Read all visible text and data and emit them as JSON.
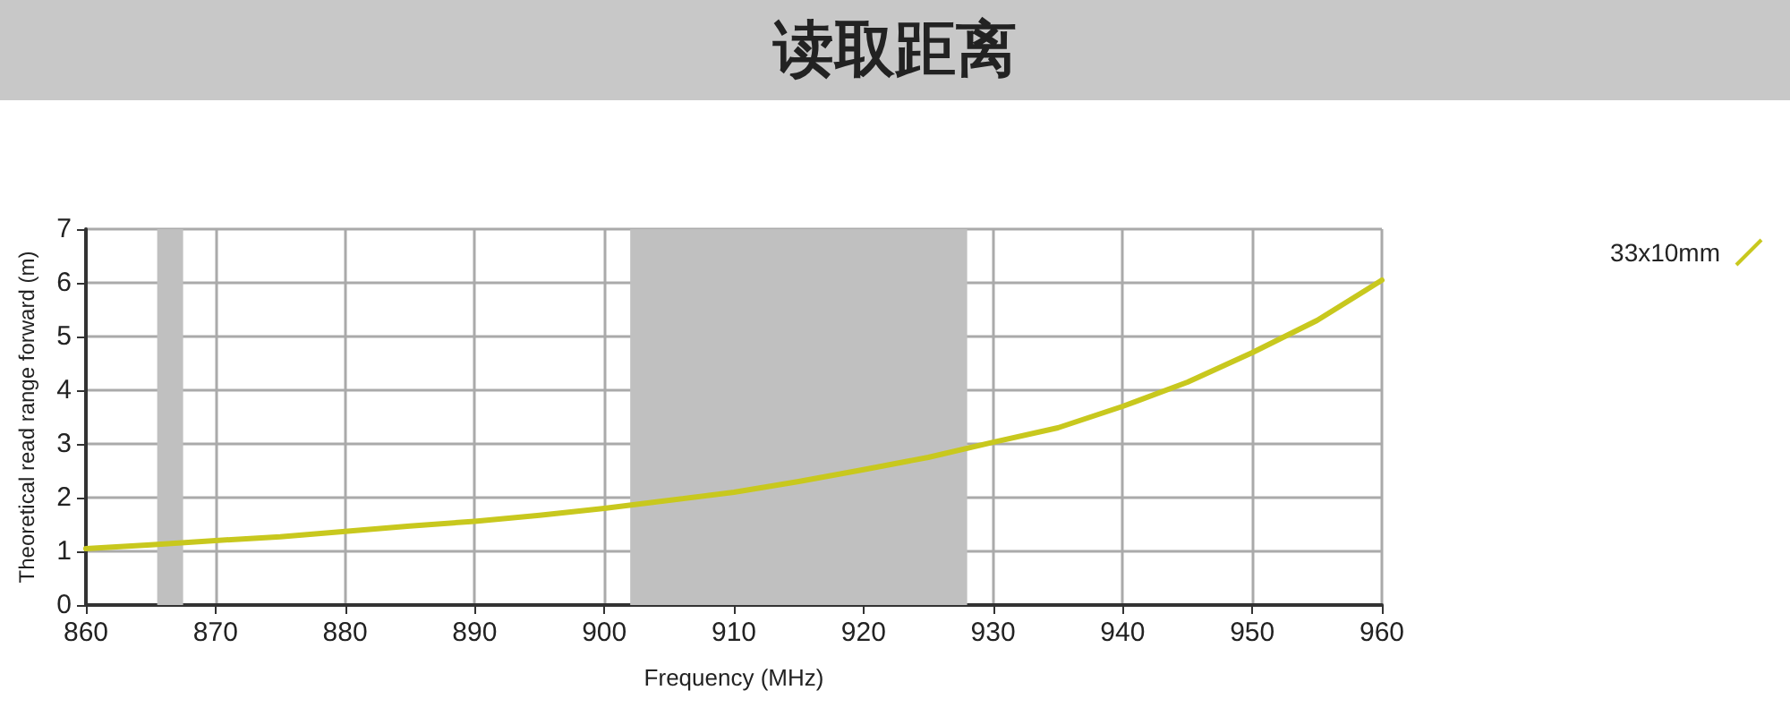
{
  "chart_data": {
    "type": "line",
    "title": "读取距离",
    "xlabel": "Frequency (MHz)",
    "ylabel": "Theoretical read range forward (m)",
    "x": [
      860,
      865,
      870,
      875,
      880,
      885,
      890,
      895,
      900,
      905,
      910,
      915,
      920,
      925,
      930,
      935,
      940,
      945,
      950,
      955,
      960
    ],
    "series": [
      {
        "name": "33x10mm",
        "color": "#c8c81e",
        "values": [
          1.05,
          1.12,
          1.2,
          1.27,
          1.37,
          1.47,
          1.56,
          1.67,
          1.8,
          1.95,
          2.1,
          2.3,
          2.52,
          2.75,
          3.03,
          3.3,
          3.7,
          4.15,
          4.7,
          5.3,
          6.05
        ]
      }
    ],
    "xlim": [
      860,
      960
    ],
    "xticks": [
      860,
      870,
      880,
      890,
      900,
      910,
      920,
      930,
      940,
      950,
      960
    ],
    "ylim": [
      0,
      7
    ],
    "yticks": [
      0,
      1,
      2,
      3,
      4,
      5,
      6,
      7
    ],
    "bands": [
      {
        "axis": "x",
        "from": 865.5,
        "to": 867.5,
        "color": "#c0c0c0"
      },
      {
        "axis": "x",
        "from": 902,
        "to": 928,
        "color": "#c0c0c0"
      }
    ],
    "grid": true,
    "legend": "top right",
    "marker": "none",
    "line_style": "solid"
  }
}
